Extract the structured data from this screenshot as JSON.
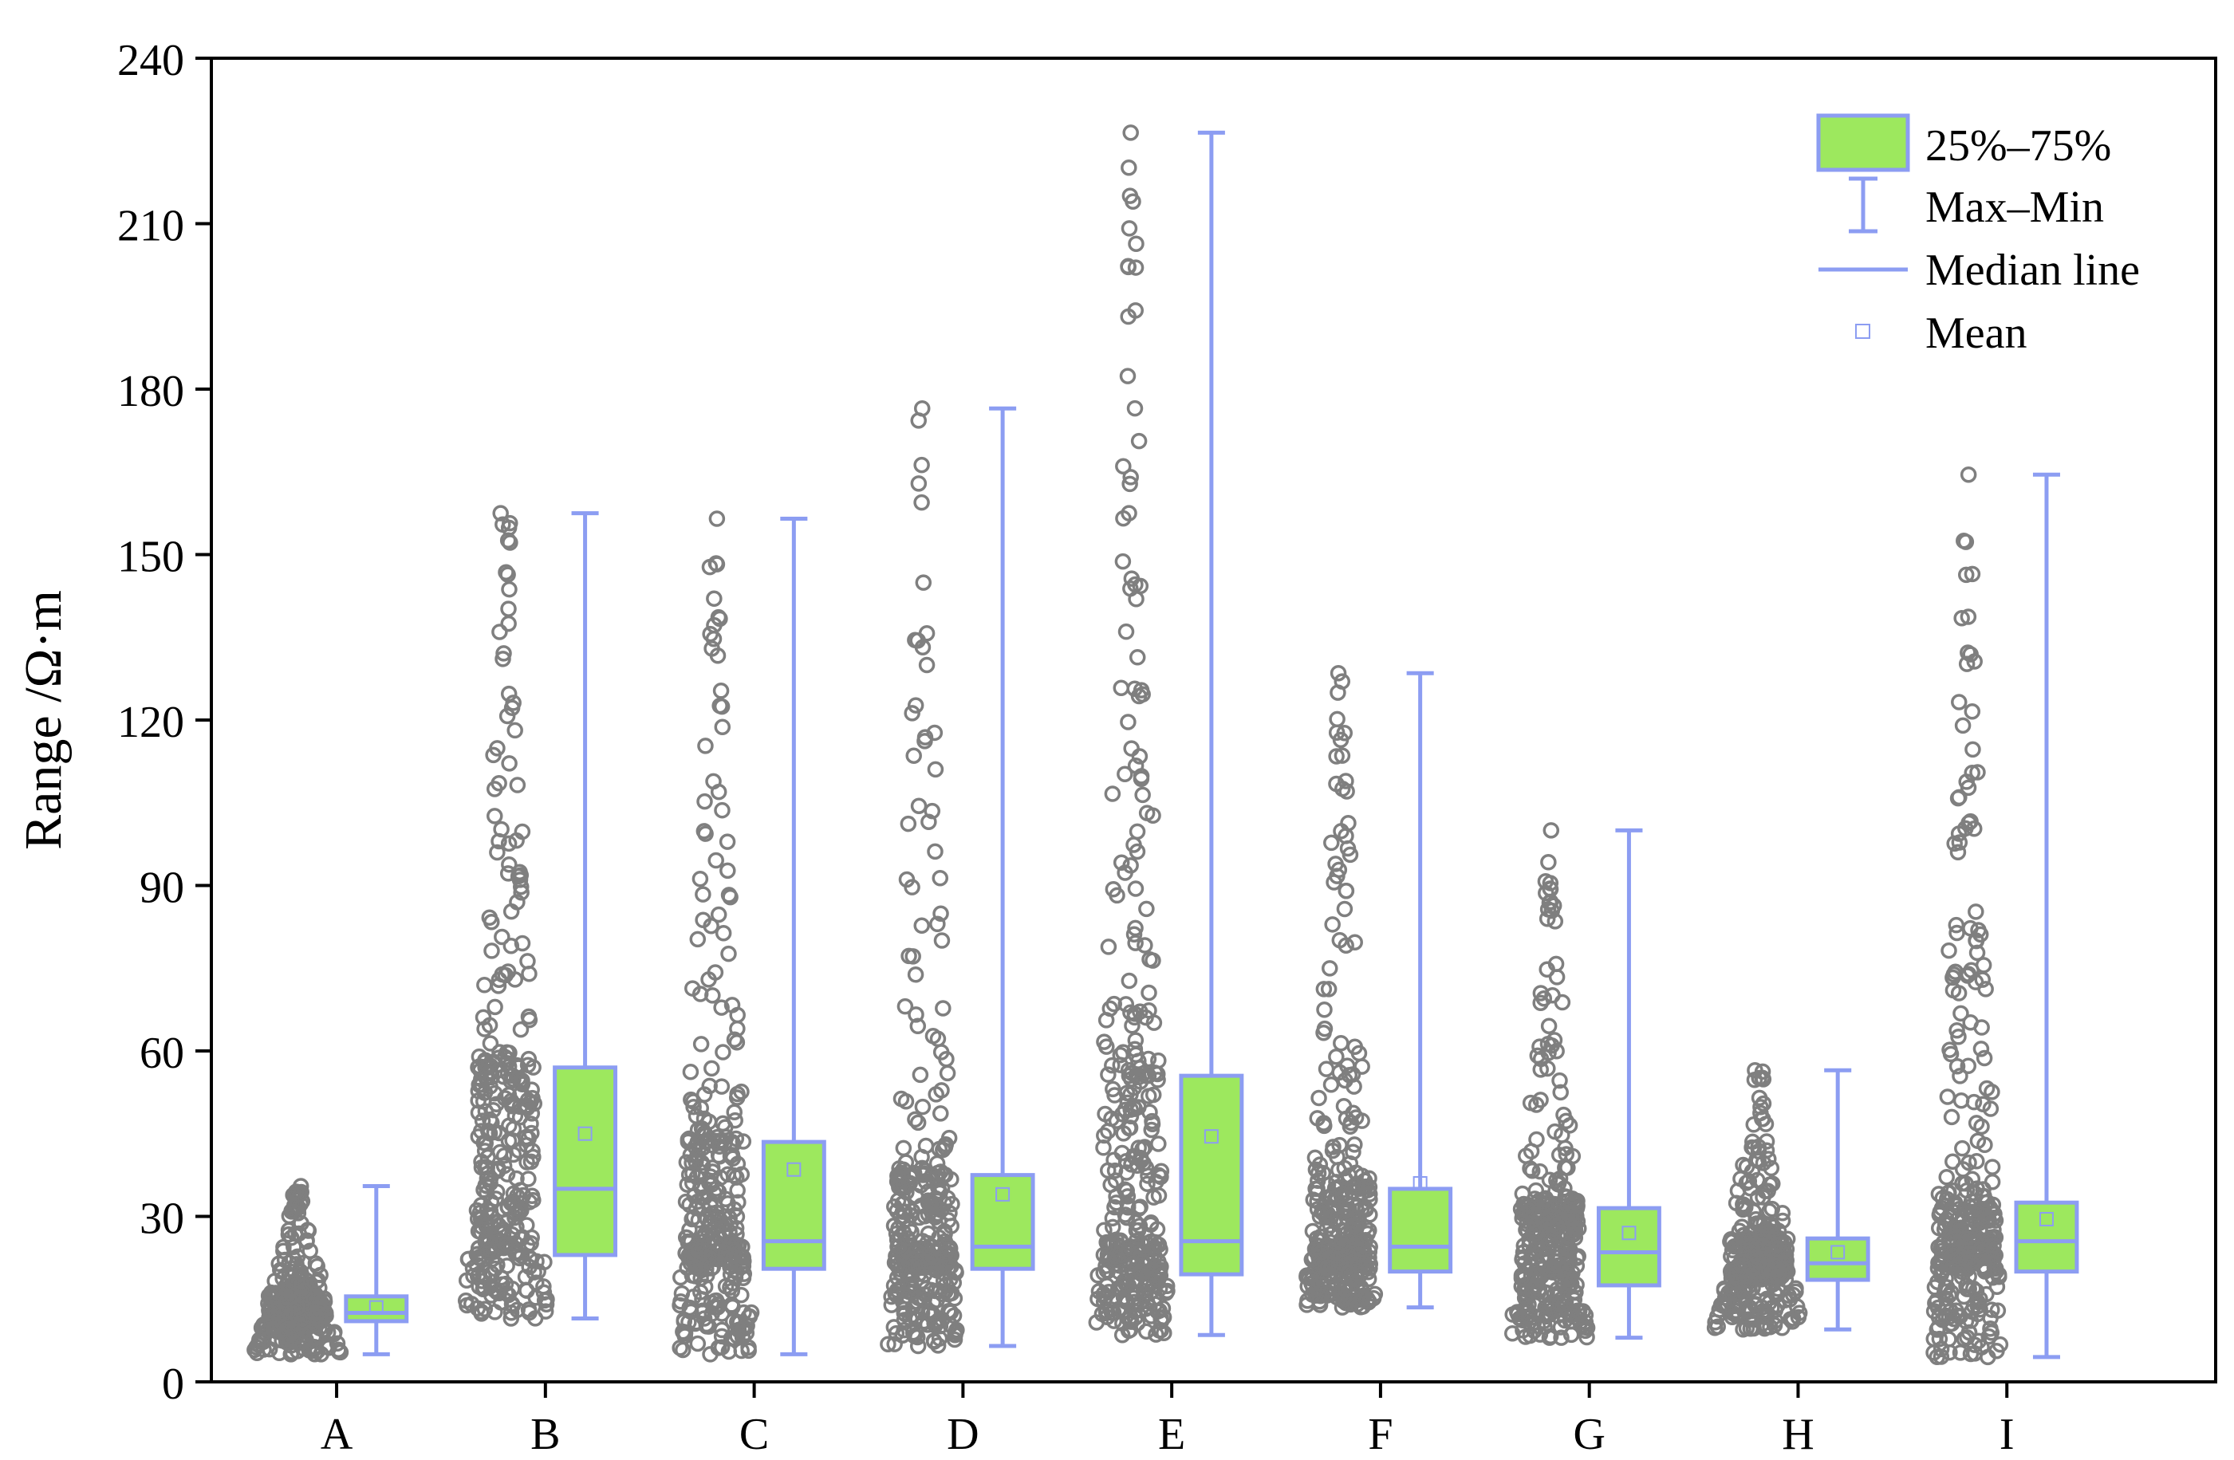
{
  "chart_data": {
    "type": "box",
    "title": "",
    "xlabel": "",
    "ylabel": "Range /Ω·m",
    "ylim": [
      0,
      240
    ],
    "yticks": [
      0,
      30,
      60,
      90,
      120,
      150,
      180,
      210,
      240
    ],
    "categories": [
      "A",
      "B",
      "C",
      "D",
      "E",
      "F",
      "G",
      "H",
      "I"
    ],
    "boxes": [
      {
        "category": "A",
        "min": 5,
        "q1": 11,
        "median": 12.5,
        "q3": 15.5,
        "max": 35.5,
        "mean": 13.5
      },
      {
        "category": "B",
        "min": 11.5,
        "q1": 23,
        "median": 35,
        "q3": 57,
        "max": 157.5,
        "mean": 45
      },
      {
        "category": "C",
        "min": 5,
        "q1": 20.5,
        "median": 25.5,
        "q3": 43.5,
        "max": 156.5,
        "mean": 38.5
      },
      {
        "category": "D",
        "min": 6.5,
        "q1": 20.5,
        "median": 24.5,
        "q3": 37.5,
        "max": 176.5,
        "mean": 34
      },
      {
        "category": "E",
        "min": 8.5,
        "q1": 19.5,
        "median": 25.5,
        "q3": 55.5,
        "max": 226.5,
        "mean": 44.5
      },
      {
        "category": "F",
        "min": 13.5,
        "q1": 20,
        "median": 24.5,
        "q3": 35,
        "max": 128.5,
        "mean": 36
      },
      {
        "category": "G",
        "min": 8,
        "q1": 17.5,
        "median": 23.5,
        "q3": 31.5,
        "max": 100,
        "mean": 27
      },
      {
        "category": "H",
        "min": 9.5,
        "q1": 18.5,
        "median": 21.5,
        "q3": 26,
        "max": 56.5,
        "mean": 23.5
      },
      {
        "category": "I",
        "min": 4.5,
        "q1": 20,
        "median": 25.5,
        "q3": 32.5,
        "max": 164.5,
        "mean": 29.5
      }
    ],
    "legend": {
      "position": "top-right",
      "entries": [
        "25%–75%",
        "Max–Min",
        "Median line",
        "Mean"
      ]
    },
    "colors": {
      "box_fill": "#9de85e",
      "box_stroke": "#8c9df2",
      "whisker": "#8c9df2",
      "scatter": "#7f7f7f"
    }
  }
}
